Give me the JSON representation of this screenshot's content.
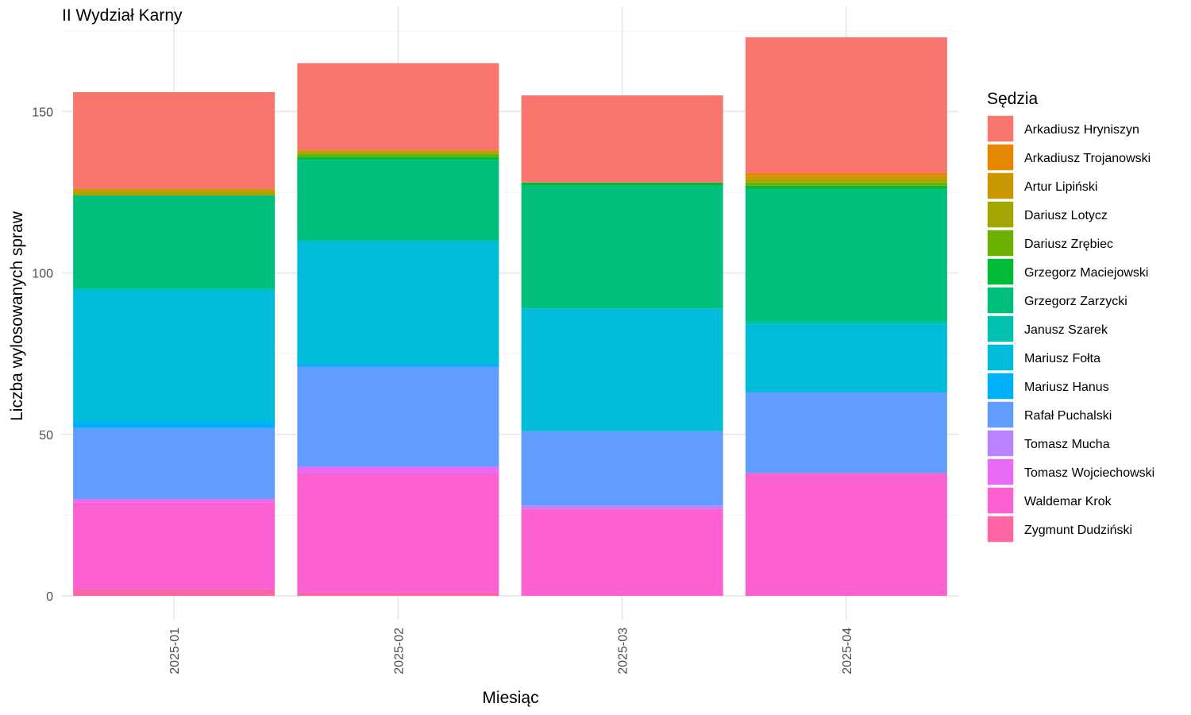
{
  "chart_data": {
    "type": "bar",
    "stacked": true,
    "title": "II Wydział Karny",
    "xlabel": "Miesiąc",
    "ylabel": "Liczba wylosowanych spraw",
    "legend_title": "Sędzia",
    "legend_position": "right",
    "grid": true,
    "ylim": [
      0,
      175
    ],
    "yticks": [
      0,
      50,
      100,
      150
    ],
    "categories": [
      "2025-01",
      "2025-02",
      "2025-03",
      "2025-04"
    ],
    "series": [
      {
        "name": "Arkadiusz Hryniszyn",
        "color": "#F8766D",
        "values": [
          30,
          27,
          27,
          42
        ]
      },
      {
        "name": "Arkadiusz Trojanowski",
        "color": "#E58700",
        "values": [
          0,
          0,
          0,
          1
        ]
      },
      {
        "name": "Artur Lipiński",
        "color": "#C99800",
        "values": [
          1,
          1,
          0,
          1
        ]
      },
      {
        "name": "Dariusz Lotycz",
        "color": "#A3A500",
        "values": [
          1,
          0,
          0,
          1
        ]
      },
      {
        "name": "Dariusz Zrębiec",
        "color": "#6BB100",
        "values": [
          0,
          1,
          0,
          1
        ]
      },
      {
        "name": "Grzegorz Maciejowski",
        "color": "#00BA38",
        "values": [
          0,
          1,
          1,
          1
        ]
      },
      {
        "name": "Grzegorz Zarzycki",
        "color": "#00BF7D",
        "values": [
          29,
          25,
          38,
          41
        ]
      },
      {
        "name": "Janusz Szarek",
        "color": "#00C0AF",
        "values": [
          0,
          0,
          0,
          1
        ]
      },
      {
        "name": "Mariusz Fołta",
        "color": "#00BCD8",
        "values": [
          41,
          38,
          38,
          21
        ]
      },
      {
        "name": "Mariusz Hanus",
        "color": "#00B0F6",
        "values": [
          2,
          1,
          0,
          0
        ]
      },
      {
        "name": "Rafał Puchalski",
        "color": "#619CFF",
        "values": [
          22,
          31,
          23,
          25
        ]
      },
      {
        "name": "Tomasz Mucha",
        "color": "#B983FF",
        "values": [
          0,
          0,
          1,
          0
        ]
      },
      {
        "name": "Tomasz Wojciechowski",
        "color": "#E76BF3",
        "values": [
          1,
          2,
          0,
          0
        ]
      },
      {
        "name": "Waldemar Krok",
        "color": "#FD61D1",
        "values": [
          27,
          37,
          27,
          38
        ]
      },
      {
        "name": "Zygmunt Dudziński",
        "color": "#FF67A4",
        "values": [
          2,
          1,
          0,
          0
        ]
      }
    ]
  }
}
